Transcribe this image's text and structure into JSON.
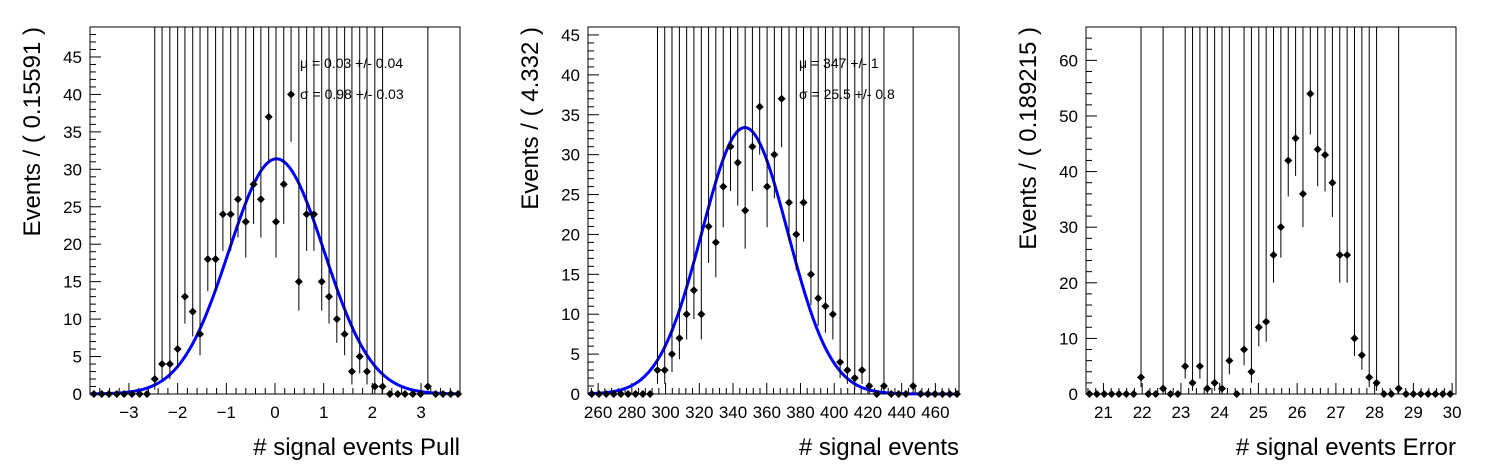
{
  "chart_data": [
    {
      "type": "scatter",
      "xlabel": "# signal events Pull",
      "ylabel": "Events / ( 0.15591 )",
      "xlim": [
        -3.8,
        3.8
      ],
      "ylim": [
        0,
        49
      ],
      "xticks": [
        -3,
        -2,
        -1,
        0,
        1,
        2,
        3
      ],
      "yticks": [
        0,
        5,
        10,
        15,
        20,
        25,
        30,
        35,
        40,
        45
      ],
      "annotations": [
        {
          "mu_symbol": "μ",
          "text": "=  0.03 +/- 0.04"
        },
        {
          "mu_symbol": "σ",
          "text": "=  0.98 +/- 0.03"
        }
      ],
      "fit": {
        "type": "gaussian",
        "mean": 0.03,
        "sigma": 0.98,
        "amplitude": 31.4,
        "color": "#0000ff"
      },
      "points": [
        {
          "x": -3.72,
          "y": 0
        },
        {
          "x": -3.56,
          "y": 0
        },
        {
          "x": -3.41,
          "y": 0
        },
        {
          "x": -3.25,
          "y": 0
        },
        {
          "x": -3.1,
          "y": 0
        },
        {
          "x": -2.94,
          "y": 0
        },
        {
          "x": -2.78,
          "y": 0
        },
        {
          "x": -2.63,
          "y": 0
        },
        {
          "x": -2.47,
          "y": 2
        },
        {
          "x": -2.32,
          "y": 4
        },
        {
          "x": -2.16,
          "y": 4
        },
        {
          "x": -2.0,
          "y": 6
        },
        {
          "x": -1.85,
          "y": 13
        },
        {
          "x": -1.69,
          "y": 11
        },
        {
          "x": -1.54,
          "y": 8
        },
        {
          "x": -1.38,
          "y": 18
        },
        {
          "x": -1.22,
          "y": 18
        },
        {
          "x": -1.07,
          "y": 24
        },
        {
          "x": -0.91,
          "y": 24
        },
        {
          "x": -0.76,
          "y": 26
        },
        {
          "x": -0.6,
          "y": 23
        },
        {
          "x": -0.44,
          "y": 28
        },
        {
          "x": -0.29,
          "y": 26
        },
        {
          "x": -0.13,
          "y": 37
        },
        {
          "x": 0.02,
          "y": 23
        },
        {
          "x": 0.18,
          "y": 28
        },
        {
          "x": 0.33,
          "y": 40
        },
        {
          "x": 0.49,
          "y": 15
        },
        {
          "x": 0.65,
          "y": 24
        },
        {
          "x": 0.8,
          "y": 24
        },
        {
          "x": 0.96,
          "y": 15
        },
        {
          "x": 1.11,
          "y": 13
        },
        {
          "x": 1.27,
          "y": 10
        },
        {
          "x": 1.43,
          "y": 8
        },
        {
          "x": 1.58,
          "y": 3
        },
        {
          "x": 1.74,
          "y": 5
        },
        {
          "x": 1.89,
          "y": 3
        },
        {
          "x": 2.05,
          "y": 1
        },
        {
          "x": 2.21,
          "y": 1
        },
        {
          "x": 2.36,
          "y": 0
        },
        {
          "x": 2.52,
          "y": 0
        },
        {
          "x": 2.67,
          "y": 0
        },
        {
          "x": 2.83,
          "y": 0
        },
        {
          "x": 2.99,
          "y": 0
        },
        {
          "x": 3.14,
          "y": 1
        },
        {
          "x": 3.3,
          "y": 0
        },
        {
          "x": 3.45,
          "y": 0
        },
        {
          "x": 3.61,
          "y": 0
        },
        {
          "x": 3.76,
          "y": 0
        }
      ]
    },
    {
      "type": "scatter",
      "xlabel": "# signal events",
      "ylabel": "Events / ( 4.332 )",
      "xlim": [
        254,
        474
      ],
      "ylim": [
        0,
        46
      ],
      "xticks": [
        260,
        280,
        300,
        320,
        340,
        360,
        380,
        400,
        420,
        440,
        460
      ],
      "yticks": [
        0,
        5,
        10,
        15,
        20,
        25,
        30,
        35,
        40,
        45
      ],
      "annotations": [
        {
          "mu_symbol": "μ",
          "text": "=  347 +/- 1"
        },
        {
          "mu_symbol": "σ",
          "text": "=  25.5 +/- 0.8"
        }
      ],
      "fit": {
        "type": "gaussian",
        "mean": 347,
        "sigma": 25.5,
        "amplitude": 33.4,
        "color": "#0000ff"
      },
      "points": [
        {
          "x": 256.2,
          "y": 0
        },
        {
          "x": 260.5,
          "y": 0
        },
        {
          "x": 264.8,
          "y": 0
        },
        {
          "x": 269.2,
          "y": 0
        },
        {
          "x": 273.5,
          "y": 0
        },
        {
          "x": 277.8,
          "y": 0
        },
        {
          "x": 282.2,
          "y": 0
        },
        {
          "x": 286.5,
          "y": 0
        },
        {
          "x": 290.8,
          "y": 0
        },
        {
          "x": 295.2,
          "y": 3
        },
        {
          "x": 299.5,
          "y": 3
        },
        {
          "x": 303.8,
          "y": 5
        },
        {
          "x": 308.2,
          "y": 7
        },
        {
          "x": 312.5,
          "y": 10
        },
        {
          "x": 316.8,
          "y": 13
        },
        {
          "x": 321.2,
          "y": 10
        },
        {
          "x": 325.5,
          "y": 21
        },
        {
          "x": 329.8,
          "y": 19
        },
        {
          "x": 334.2,
          "y": 26
        },
        {
          "x": 338.5,
          "y": 31
        },
        {
          "x": 342.8,
          "y": 29
        },
        {
          "x": 347.2,
          "y": 23
        },
        {
          "x": 351.5,
          "y": 31
        },
        {
          "x": 355.8,
          "y": 36
        },
        {
          "x": 360.2,
          "y": 26
        },
        {
          "x": 364.5,
          "y": 30
        },
        {
          "x": 368.8,
          "y": 37
        },
        {
          "x": 373.2,
          "y": 24
        },
        {
          "x": 377.5,
          "y": 20
        },
        {
          "x": 381.8,
          "y": 24
        },
        {
          "x": 386.2,
          "y": 15
        },
        {
          "x": 390.5,
          "y": 12
        },
        {
          "x": 394.8,
          "y": 11
        },
        {
          "x": 399.2,
          "y": 10
        },
        {
          "x": 403.5,
          "y": 4
        },
        {
          "x": 407.8,
          "y": 3
        },
        {
          "x": 412.2,
          "y": 2
        },
        {
          "x": 416.5,
          "y": 3
        },
        {
          "x": 420.8,
          "y": 1
        },
        {
          "x": 425.2,
          "y": 0
        },
        {
          "x": 429.5,
          "y": 1
        },
        {
          "x": 433.8,
          "y": 0
        },
        {
          "x": 438.2,
          "y": 0
        },
        {
          "x": 442.5,
          "y": 0
        },
        {
          "x": 446.8,
          "y": 1
        },
        {
          "x": 451.2,
          "y": 0
        },
        {
          "x": 455.5,
          "y": 0
        },
        {
          "x": 459.8,
          "y": 0
        },
        {
          "x": 464.2,
          "y": 0
        },
        {
          "x": 468.5,
          "y": 0
        },
        {
          "x": 472.8,
          "y": 0
        }
      ]
    },
    {
      "type": "scatter",
      "xlabel": "# signal events Error",
      "ylabel": "Events / ( 0.189215 )",
      "xlim": [
        20.55,
        30.1
      ],
      "ylim": [
        0,
        66
      ],
      "xticks": [
        21,
        22,
        23,
        24,
        25,
        26,
        27,
        28,
        29,
        30
      ],
      "yticks": [
        0,
        10,
        20,
        30,
        40,
        50,
        60
      ],
      "points": [
        {
          "x": 20.64,
          "y": 0
        },
        {
          "x": 20.83,
          "y": 0
        },
        {
          "x": 21.02,
          "y": 0
        },
        {
          "x": 21.21,
          "y": 0
        },
        {
          "x": 21.4,
          "y": 0
        },
        {
          "x": 21.59,
          "y": 0
        },
        {
          "x": 21.78,
          "y": 0
        },
        {
          "x": 21.97,
          "y": 3
        },
        {
          "x": 22.16,
          "y": 0
        },
        {
          "x": 22.35,
          "y": 0
        },
        {
          "x": 22.54,
          "y": 1
        },
        {
          "x": 22.73,
          "y": 0
        },
        {
          "x": 22.92,
          "y": 0
        },
        {
          "x": 23.11,
          "y": 5
        },
        {
          "x": 23.3,
          "y": 2
        },
        {
          "x": 23.49,
          "y": 5
        },
        {
          "x": 23.68,
          "y": 1
        },
        {
          "x": 23.87,
          "y": 2
        },
        {
          "x": 24.06,
          "y": 1
        },
        {
          "x": 24.25,
          "y": 6
        },
        {
          "x": 24.44,
          "y": 0
        },
        {
          "x": 24.63,
          "y": 8
        },
        {
          "x": 24.82,
          "y": 4
        },
        {
          "x": 25.01,
          "y": 12
        },
        {
          "x": 25.2,
          "y": 13
        },
        {
          "x": 25.39,
          "y": 25
        },
        {
          "x": 25.58,
          "y": 30
        },
        {
          "x": 25.77,
          "y": 42
        },
        {
          "x": 25.96,
          "y": 46
        },
        {
          "x": 26.15,
          "y": 36
        },
        {
          "x": 26.34,
          "y": 54
        },
        {
          "x": 26.53,
          "y": 44
        },
        {
          "x": 26.72,
          "y": 43
        },
        {
          "x": 26.91,
          "y": 38
        },
        {
          "x": 27.1,
          "y": 25
        },
        {
          "x": 27.29,
          "y": 25
        },
        {
          "x": 27.48,
          "y": 10
        },
        {
          "x": 27.67,
          "y": 7
        },
        {
          "x": 27.86,
          "y": 3
        },
        {
          "x": 28.05,
          "y": 2
        },
        {
          "x": 28.24,
          "y": 0
        },
        {
          "x": 28.43,
          "y": 0
        },
        {
          "x": 28.62,
          "y": 1
        },
        {
          "x": 28.81,
          "y": 0
        },
        {
          "x": 29.0,
          "y": 0
        },
        {
          "x": 29.19,
          "y": 0
        },
        {
          "x": 29.38,
          "y": 0
        },
        {
          "x": 29.57,
          "y": 0
        },
        {
          "x": 29.76,
          "y": 0
        },
        {
          "x": 29.95,
          "y": 0
        }
      ]
    }
  ]
}
